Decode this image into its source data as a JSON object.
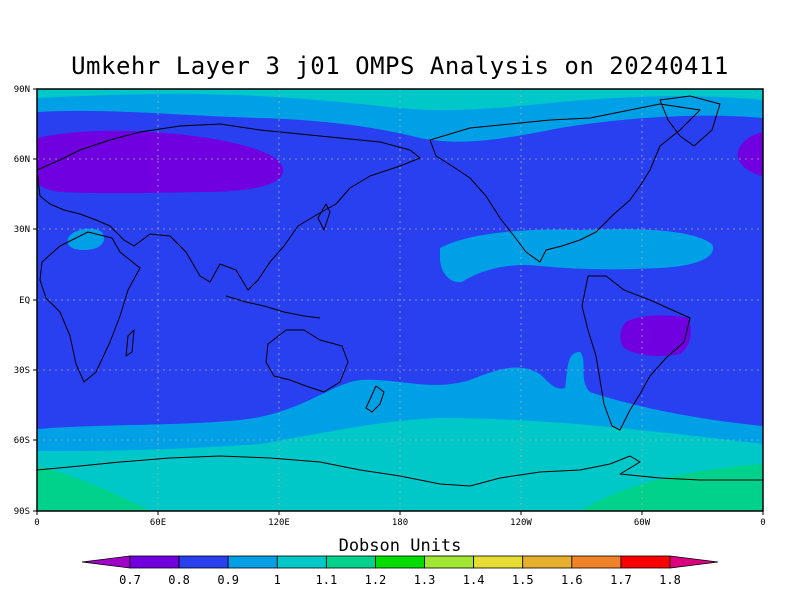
{
  "title": "Umkehr Layer 3 j01 OMPS Analysis on 20240411",
  "lat_labels": [
    "90N",
    "60N",
    "30N",
    "EQ",
    "30S",
    "60S",
    "90S"
  ],
  "lon_labels": [
    "0",
    "60E",
    "120E",
    "180",
    "120W",
    "60W",
    "0"
  ],
  "colorbar": {
    "title": "Dobson Units",
    "ticks": [
      "0.7",
      "0.8",
      "0.9",
      "1",
      "1.1",
      "1.2",
      "1.3",
      "1.4",
      "1.5",
      "1.6",
      "1.7",
      "1.8"
    ],
    "colors": [
      "#a000c8",
      "#7000e0",
      "#2840f0",
      "#00a0e6",
      "#00c8c8",
      "#00d28c",
      "#00dc00",
      "#a0e632",
      "#e6dc32",
      "#e6af2d",
      "#f08228",
      "#fa0000",
      "#dc0080"
    ]
  },
  "palette": {
    "background": "#2840f0",
    "land_outline": "#000000",
    "grid": "#aaaaaa"
  }
}
